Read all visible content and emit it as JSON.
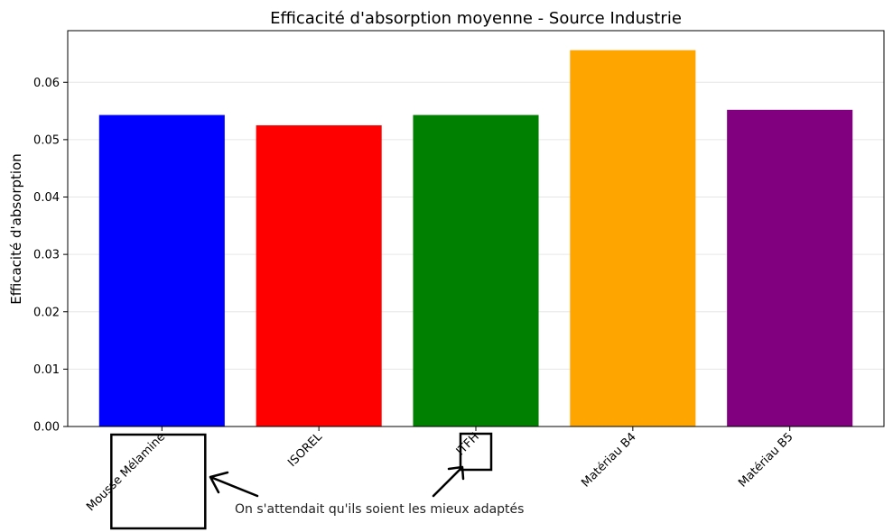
{
  "chart_data": {
    "type": "bar",
    "title": "Efficacité d'absorption moyenne - Source Industrie",
    "xlabel": "",
    "ylabel": "Efficacité d'absorption",
    "categories": [
      "Mousse Mélamine",
      "ISOREL",
      "ITFH",
      "Matériau B4",
      "Matériau B5"
    ],
    "values": [
      0.0543,
      0.0525,
      0.0543,
      0.0656,
      0.0552
    ],
    "colors": [
      "#0000ff",
      "#ff0000",
      "#008000",
      "#ffa500",
      "#800080"
    ],
    "ylim": [
      0,
      0.069
    ],
    "yticks": [
      0.0,
      0.01,
      0.02,
      0.03,
      0.04,
      0.05,
      0.06
    ],
    "ytick_labels": [
      "0.00",
      "0.01",
      "0.02",
      "0.03",
      "0.04",
      "0.05",
      "0.06"
    ],
    "grid": "y",
    "legend": "none",
    "annotation": {
      "text": "On s'attendait qu'ils soient les mieux adaptés",
      "highlighted_categories": [
        "Mousse Mélamine",
        "ITFH"
      ]
    }
  }
}
